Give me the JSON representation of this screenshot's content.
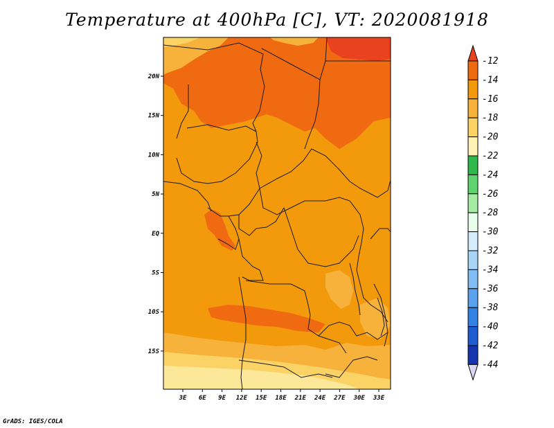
{
  "title": "Temperature at 400hPa [C], VT: 2020081918",
  "credit": "GrADS: IGES/COLA",
  "map": {
    "lat_labels": [
      "20N",
      "15N",
      "10N",
      "5N",
      "EQ",
      "5S",
      "10S",
      "15S"
    ],
    "lon_labels": [
      "3E",
      "6E",
      "9E",
      "12E",
      "15E",
      "18E",
      "21E",
      "24E",
      "27E",
      "30E",
      "33E"
    ]
  },
  "colorbar": {
    "labels": [
      "-12",
      "-14",
      "-16",
      "-18",
      "-20",
      "-22",
      "-24",
      "-26",
      "-28",
      "-30",
      "-32",
      "-34",
      "-36",
      "-38",
      "-40",
      "-42",
      "-44"
    ],
    "colors": {
      "top": "#e8421e",
      "bands": [
        "#f06a12",
        "#f39a0c",
        "#f6b23a",
        "#fad266",
        "#fef2b4",
        "#2fb84b",
        "#5fd46e",
        "#a6eba4",
        "#e8fdea",
        "#d4ecfb",
        "#a8d4f6",
        "#82bef4",
        "#5aa2ee",
        "#3282e4",
        "#1e5cd2",
        "#1434b0"
      ],
      "bottom": "#dcd6f6"
    }
  },
  "fill_colors": {
    "base": "#f39a0c",
    "warm": "#f06a12",
    "hot": "#e8421e",
    "cool": "#f6b23a",
    "cooler": "#fad266",
    "coolest": "#fde89a"
  }
}
